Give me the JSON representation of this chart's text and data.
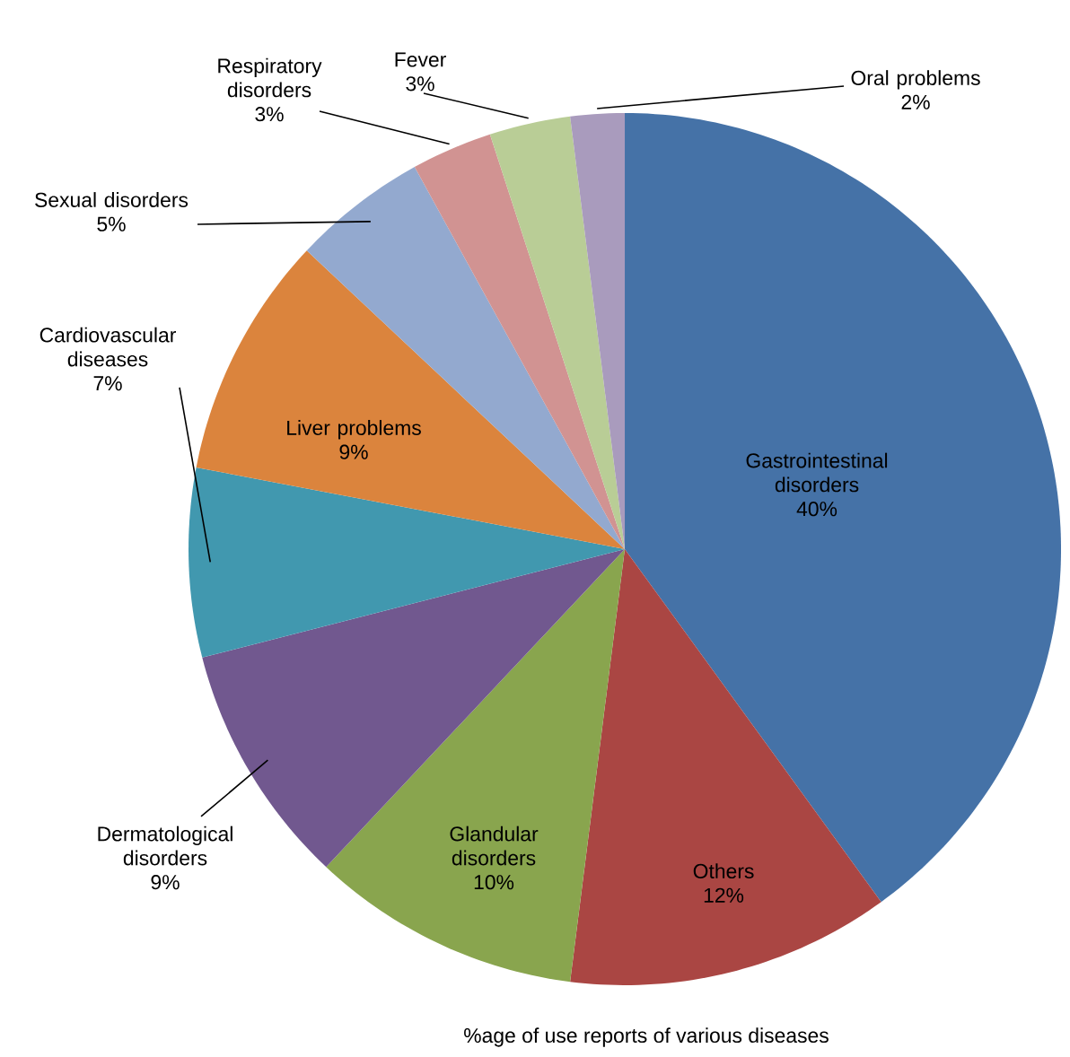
{
  "chart_data": {
    "type": "pie",
    "title": "%age of  use reports  of various diseases",
    "categories": [
      "Gastrointestinal disorders",
      "Others",
      "Glandular disorders",
      "Dermatological disorders",
      "Cardiovascular diseases",
      "Liver problems",
      "Sexual disorders",
      "Respiratory disorders",
      "Fever",
      "Oral problems"
    ],
    "values": [
      40,
      12,
      10,
      9,
      7,
      9,
      5,
      3,
      3,
      2
    ],
    "value_labels": [
      "40%",
      "12%",
      "10%",
      "9%",
      "7%",
      "9%",
      "5%",
      "3%",
      "3%",
      "2%"
    ],
    "colors": [
      "#4572a7",
      "#aa4643",
      "#89a54e",
      "#71588f",
      "#4198af",
      "#db843d",
      "#93a9cf",
      "#d19392",
      "#b9cd96",
      "#a99bbd"
    ],
    "legend": false
  }
}
